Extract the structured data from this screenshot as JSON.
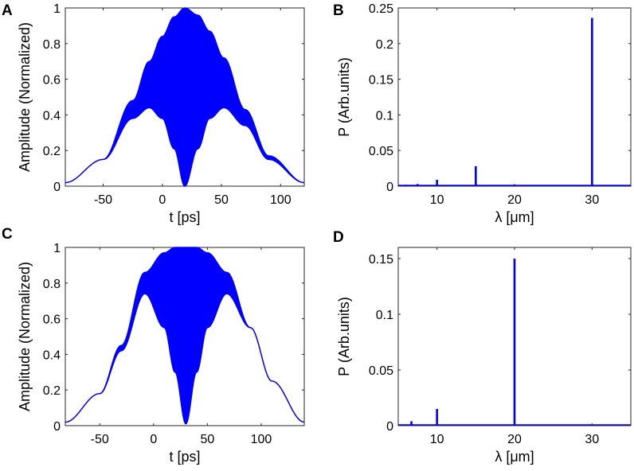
{
  "chart_data": [
    {
      "panel": "A",
      "type": "area",
      "xlabel": "t [ps]",
      "ylabel": "Amplitude (Normalized)",
      "xlim": [
        -82,
        120
      ],
      "ylim": [
        0,
        1
      ],
      "xticks": [
        -50,
        0,
        50,
        100
      ],
      "yticks": [
        0,
        0.2,
        0.4,
        0.6,
        0.8,
        1
      ],
      "color": "#0000ff",
      "envelope": {
        "description_points": "upper envelope is a Gaussian; lower envelope is a beat between two Gaussians",
        "x": [
          -82,
          -50,
          -25,
          -11,
          0,
          10,
          19,
          30,
          40,
          52,
          70,
          90,
          120
        ],
        "upper": [
          0.02,
          0.15,
          0.48,
          0.7,
          0.84,
          0.95,
          1.0,
          0.96,
          0.87,
          0.72,
          0.43,
          0.17,
          0.02
        ],
        "lower": [
          0.02,
          0.15,
          0.38,
          0.44,
          0.38,
          0.21,
          0.0,
          0.21,
          0.38,
          0.44,
          0.34,
          0.15,
          0.02
        ]
      }
    },
    {
      "panel": "B",
      "type": "line",
      "xlabel": "λ [μm]",
      "ylabel": "P (Arb.units)",
      "xlim": [
        5,
        35
      ],
      "ylim": [
        0,
        0.25
      ],
      "xticks": [
        10,
        20,
        30
      ],
      "yticks": [
        0,
        0.05,
        0.1,
        0.15,
        0.2,
        0.25
      ],
      "yticklabels": [
        "0",
        "0.05",
        "0.1",
        "0.15",
        "0.2",
        "0.25"
      ],
      "color": "#0000ff",
      "peaks": [
        {
          "x": 6.0,
          "y": 0.002
        },
        {
          "x": 7.5,
          "y": 0.003
        },
        {
          "x": 10.0,
          "y": 0.009
        },
        {
          "x": 15.0,
          "y": 0.028
        },
        {
          "x": 30.0,
          "y": 0.236
        }
      ]
    },
    {
      "panel": "C",
      "type": "area",
      "xlabel": "t [ps]",
      "ylabel": "Amplitude (Normalized)",
      "xlim": [
        -82,
        140
      ],
      "ylim": [
        0,
        1
      ],
      "xticks": [
        -50,
        0,
        50,
        100
      ],
      "yticks": [
        0,
        0.2,
        0.4,
        0.6,
        0.8,
        1
      ],
      "color": "#0000ff",
      "envelope": {
        "x": [
          -82,
          -50,
          -30,
          -8,
          10,
          20,
          30,
          40,
          50,
          68,
          90,
          110,
          140
        ],
        "upper": [
          0.02,
          0.18,
          0.45,
          0.86,
          0.97,
          1.0,
          1.0,
          1.0,
          0.97,
          0.86,
          0.55,
          0.25,
          0.02
        ],
        "lower": [
          0.02,
          0.18,
          0.42,
          0.74,
          0.55,
          0.3,
          0.01,
          0.3,
          0.55,
          0.74,
          0.55,
          0.25,
          0.02
        ]
      }
    },
    {
      "panel": "D",
      "type": "line",
      "xlabel": "λ [μm]",
      "ylabel": "P (Arb.units)",
      "xlim": [
        5,
        35
      ],
      "ylim": [
        0,
        0.16
      ],
      "xticks": [
        10,
        20,
        30
      ],
      "yticks": [
        0,
        0.05,
        0.1,
        0.15
      ],
      "yticklabels": [
        "0",
        "0.05",
        "0.1",
        "0.15"
      ],
      "color": "#0000ff",
      "peaks": [
        {
          "x": 6.7,
          "y": 0.004
        },
        {
          "x": 10.0,
          "y": 0.015
        },
        {
          "x": 20.0,
          "y": 0.15
        }
      ]
    }
  ]
}
